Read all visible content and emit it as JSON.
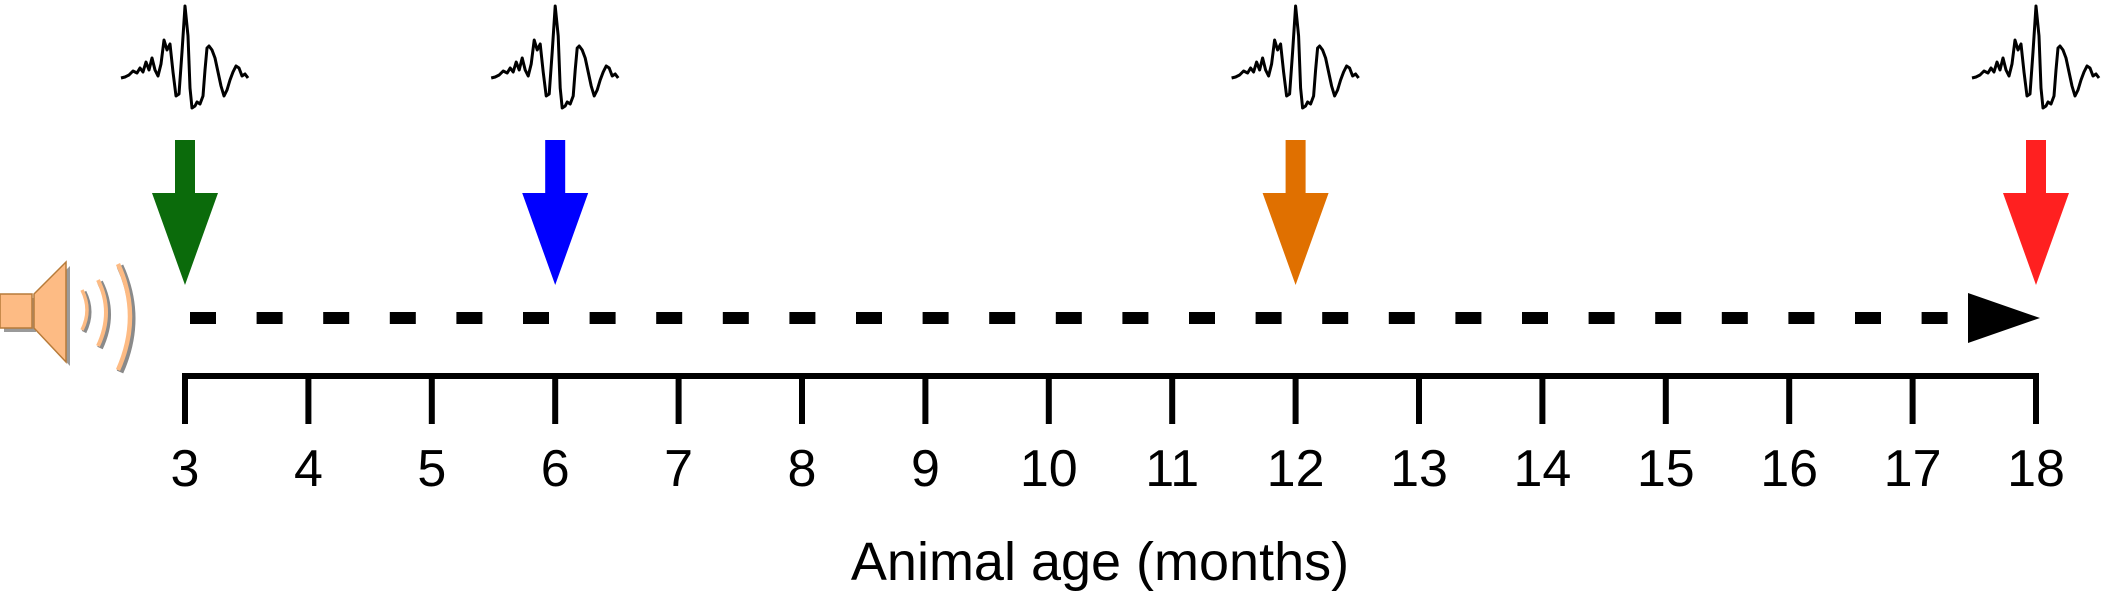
{
  "axis": {
    "title": "Animal age (months)",
    "min": 3,
    "max": 18,
    "ticks": [
      3,
      4,
      5,
      6,
      7,
      8,
      9,
      10,
      11,
      12,
      13,
      14,
      15,
      16,
      17,
      18
    ]
  },
  "timeline": {
    "style": "dashed",
    "color": "#000000",
    "direction": "increasing-age"
  },
  "stimulus": {
    "icon": "speaker-icon",
    "color": "#FDBB84"
  },
  "recordings": [
    {
      "age": 3,
      "color": "#0B6B0B",
      "icon": "waveform-icon"
    },
    {
      "age": 6,
      "color": "#0000FF",
      "icon": "waveform-icon"
    },
    {
      "age": 12,
      "color": "#E07000",
      "icon": "waveform-icon"
    },
    {
      "age": 18,
      "color": "#FF2020",
      "icon": "waveform-icon"
    }
  ]
}
